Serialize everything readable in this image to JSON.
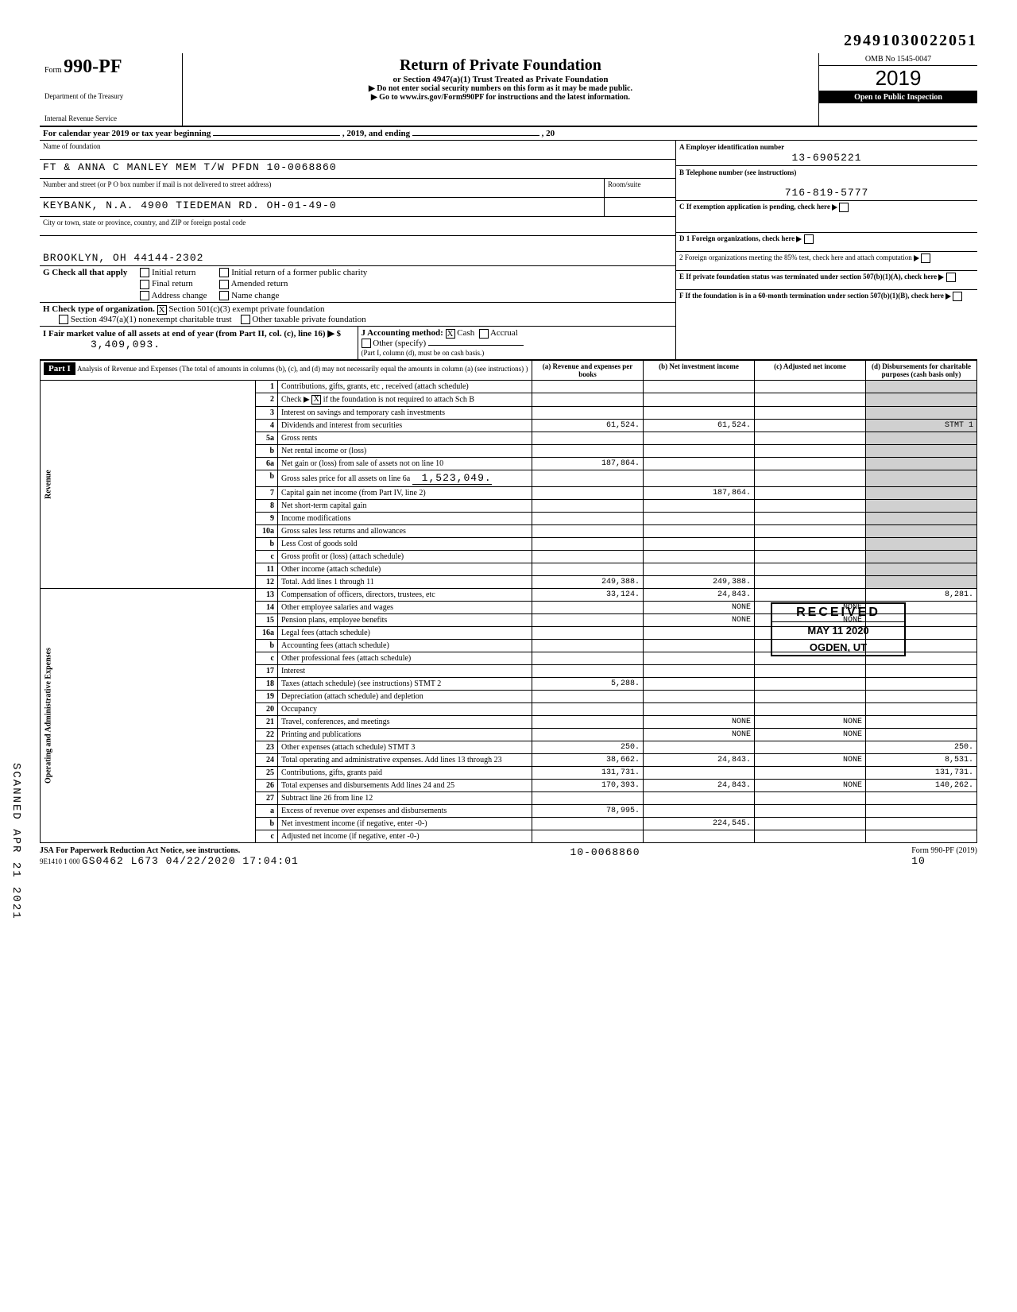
{
  "top_number": "29491030022051",
  "header": {
    "form_label": "Form",
    "form_number": "990-PF",
    "dept1": "Department of the Treasury",
    "dept2": "Internal Revenue Service",
    "title": "Return of Private Foundation",
    "subtitle1": "or Section 4947(a)(1) Trust Treated as Private Foundation",
    "subtitle2": "▶ Do not enter social security numbers on this form as it may be made public.",
    "subtitle3": "▶ Go to www.irs.gov/Form990PF for instructions and the latest information.",
    "omb": "OMB No 1545-0047",
    "year": "2019",
    "open": "Open to Public Inspection"
  },
  "cal": {
    "text": "For calendar year 2019 or tax year beginning",
    "mid": ", 2019, and ending",
    "end": ", 20"
  },
  "idblock": {
    "name_label": "Name of foundation",
    "name": "FT & ANNA C MANLEY MEM T/W PFDN 10-0068860",
    "addr_label": "Number and street (or P O box number if mail is not delivered to street address)",
    "room_label": "Room/suite",
    "addr": "KEYBANK, N.A. 4900 TIEDEMAN RD. OH-01-49-0",
    "city_label": "City or town, state or province, country, and ZIP or foreign postal code",
    "city": "BROOKLYN, OH 44144-2302",
    "ein_label": "A  Employer identification number",
    "ein": "13-6905221",
    "tel_label": "B  Telephone number (see instructions)",
    "tel": "716-819-5777",
    "c_label": "C  If exemption application is pending, check here",
    "d1": "D  1 Foreign organizations, check here",
    "d2": "2 Foreign organizations meeting the 85% test, check here and attach computation",
    "e": "E  If private foundation status was terminated under section 507(b)(1)(A), check here",
    "f": "F  If the foundation is in a 60-month termination under section 507(b)(1)(B), check here"
  },
  "g": {
    "label": "G Check all that apply",
    "opts": [
      "Initial return",
      "Final return",
      "Address change",
      "Initial return of a former public charity",
      "Amended return",
      "Name change"
    ]
  },
  "h": {
    "label": "H Check type of organization.",
    "opt1": "Section 501(c)(3) exempt private foundation",
    "opt2": "Section 4947(a)(1) nonexempt charitable trust",
    "opt3": "Other taxable private foundation"
  },
  "i": {
    "label": "I  Fair market value of all assets at end of year (from Part II, col. (c), line 16) ▶ $",
    "value": "3,409,093."
  },
  "j": {
    "label": "J Accounting method:",
    "cash": "Cash",
    "accrual": "Accrual",
    "other": "Other (specify)",
    "note": "(Part I, column (d), must be on cash basis.)"
  },
  "part1": {
    "title": "Part I",
    "desc": "Analysis of Revenue and Expenses (The total of amounts in columns (b), (c), and (d) may not necessarily equal the amounts in column (a) (see instructions) )",
    "cols": {
      "a": "(a) Revenue and expenses per books",
      "b": "(b) Net investment income",
      "c": "(c) Adjusted net income",
      "d": "(d) Disbursements for charitable purposes (cash basis only)"
    }
  },
  "sections": {
    "revenue": "Revenue",
    "opadmin": "Operating and Administrative Expenses"
  },
  "lines": [
    {
      "n": "1",
      "d": "Contributions, gifts, grants, etc , received (attach schedule)"
    },
    {
      "n": "2",
      "d": "Check ▶",
      "chk": "X",
      "d2": "if the foundation is not required to attach Sch B"
    },
    {
      "n": "3",
      "d": "Interest on savings and temporary cash investments"
    },
    {
      "n": "4",
      "d": "Dividends and interest from securities",
      "a": "61,524.",
      "b": "61,524.",
      "note": "STMT 1"
    },
    {
      "n": "5a",
      "d": "Gross rents"
    },
    {
      "n": "b",
      "d": "Net rental income or (loss)"
    },
    {
      "n": "6a",
      "d": "Net gain or (loss) from sale of assets not on line 10",
      "a": "187,864."
    },
    {
      "n": "b",
      "d": "Gross sales price for all assets on line 6a",
      "val": "1,523,049."
    },
    {
      "n": "7",
      "d": "Capital gain net income (from Part IV, line 2)",
      "b": "187,864."
    },
    {
      "n": "8",
      "d": "Net short-term capital gain"
    },
    {
      "n": "9",
      "d": "Income modifications"
    },
    {
      "n": "10a",
      "d": "Gross sales less returns and allowances"
    },
    {
      "n": "b",
      "d": "Less Cost of goods sold"
    },
    {
      "n": "c",
      "d": "Gross profit or (loss) (attach schedule)"
    },
    {
      "n": "11",
      "d": "Other income (attach schedule)"
    },
    {
      "n": "12",
      "d": "Total. Add lines 1 through 11",
      "a": "249,388.",
      "b": "249,388."
    },
    {
      "n": "13",
      "d": "Compensation of officers, directors, trustees, etc",
      "a": "33,124.",
      "b": "24,843.",
      "dd": "8,281."
    },
    {
      "n": "14",
      "d": "Other employee salaries and wages",
      "b": "NONE",
      "c": "NONE"
    },
    {
      "n": "15",
      "d": "Pension plans, employee benefits",
      "b": "NONE",
      "c": "NONE"
    },
    {
      "n": "16a",
      "d": "Legal fees (attach schedule)"
    },
    {
      "n": "b",
      "d": "Accounting fees (attach schedule)"
    },
    {
      "n": "c",
      "d": "Other professional fees (attach schedule)"
    },
    {
      "n": "17",
      "d": "Interest"
    },
    {
      "n": "18",
      "d": "Taxes (attach schedule) (see instructions) STMT 2",
      "a": "5,288."
    },
    {
      "n": "19",
      "d": "Depreciation (attach schedule) and depletion"
    },
    {
      "n": "20",
      "d": "Occupancy"
    },
    {
      "n": "21",
      "d": "Travel, conferences, and meetings",
      "b": "NONE",
      "c": "NONE"
    },
    {
      "n": "22",
      "d": "Printing and publications",
      "b": "NONE",
      "c": "NONE"
    },
    {
      "n": "23",
      "d": "Other expenses (attach schedule) STMT 3",
      "a": "250.",
      "dd": "250."
    },
    {
      "n": "24",
      "d": "Total operating and administrative expenses. Add lines 13 through 23",
      "a": "38,662.",
      "b": "24,843.",
      "c": "NONE",
      "dd": "8,531."
    },
    {
      "n": "25",
      "d": "Contributions, gifts, grants paid",
      "a": "131,731.",
      "dd": "131,731."
    },
    {
      "n": "26",
      "d": "Total expenses and disbursements Add lines 24 and 25",
      "a": "170,393.",
      "b": "24,843.",
      "c": "NONE",
      "dd": "140,262."
    },
    {
      "n": "27",
      "d": "Subtract line 26 from line 12"
    },
    {
      "n": "a",
      "d": "Excess of revenue over expenses and disbursements",
      "a": "78,995."
    },
    {
      "n": "b",
      "d": "Net investment income (if negative, enter -0-)",
      "b": "224,545."
    },
    {
      "n": "c",
      "d": "Adjusted net income (if negative, enter -0-)"
    }
  ],
  "stamp": {
    "received": "RECEIVED",
    "date": "MAY 11 2020",
    "loc": "OGDEN, UT"
  },
  "scanned": "SCANNED APR 21 2021",
  "footer": {
    "jsa": "JSA",
    "paperwork": "For Paperwork Reduction Act Notice, see instructions.",
    "code": "9E1410 1 000",
    "batch": "GS0462 L673 04/22/2020 17:04:01",
    "acct": "10-0068860",
    "page": "10",
    "form": "Form 990-PF (2019)"
  }
}
